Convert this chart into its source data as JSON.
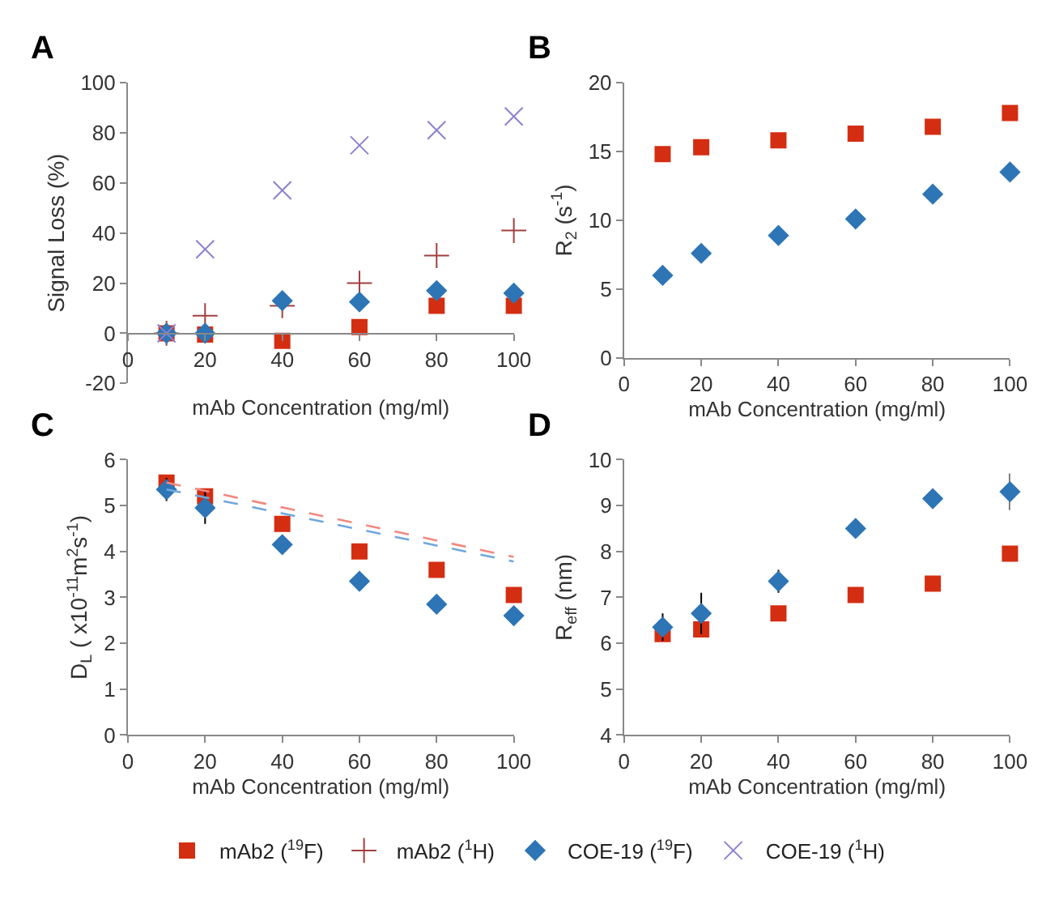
{
  "chart_data": [
    {
      "type": "scatter",
      "title": "A",
      "xlabel": "mAb Concentration (mg/ml)",
      "ylabel": "Signal Loss (%)",
      "x": [
        10,
        20,
        40,
        60,
        80,
        100
      ],
      "xlim": [
        0,
        100
      ],
      "xticks": [
        0,
        20,
        40,
        60,
        80,
        100
      ],
      "ylim": [
        -20,
        100
      ],
      "yticks": [
        -20,
        0,
        20,
        40,
        60,
        80,
        100
      ],
      "legend": "bottom",
      "series": [
        {
          "name": "mAb2 ($^{19}$F)",
          "color": "#d42e12",
          "marker": "square",
          "values": [
            0,
            -0.5,
            -3,
            2.5,
            11,
            11
          ]
        },
        {
          "name": "mAb2 ($^{1}$H)",
          "color": "#a0403f",
          "marker": "cross",
          "values": [
            0,
            7,
            11,
            20,
            31,
            41
          ]
        },
        {
          "name": "COE-19 ($^{19}$F)",
          "color": "#2e75b6",
          "marker": "diamond",
          "values": [
            0,
            0,
            13,
            12.5,
            17,
            16
          ]
        },
        {
          "name": "COE-19 ($^{1}$H)",
          "color": "#8a80d0",
          "marker": "x",
          "values": [
            0,
            33.5,
            57,
            75,
            81,
            86.5
          ]
        }
      ]
    },
    {
      "type": "scatter",
      "title": "B",
      "xlabel": "mAb Concentration (mg/ml)",
      "ylabel": "R$_{2}$ (s$^{-1}$)",
      "x": [
        10,
        20,
        40,
        60,
        80,
        100
      ],
      "xlim": [
        0,
        100
      ],
      "xticks": [
        0,
        20,
        40,
        60,
        80,
        100
      ],
      "ylim": [
        0,
        20
      ],
      "yticks": [
        0,
        5,
        10,
        15,
        20
      ],
      "series": [
        {
          "color": "#d42e12",
          "marker": "square",
          "values": [
            14.8,
            15.3,
            15.8,
            16.3,
            16.8,
            17.8
          ]
        },
        {
          "color": "#2e75b6",
          "marker": "diamond",
          "values": [
            6,
            7.6,
            8.9,
            10.1,
            11.9,
            13.5
          ]
        }
      ]
    },
    {
      "type": "scatter",
      "title": "C",
      "xlabel": "mAb Concentration (mg/ml)",
      "ylabel": "D$_{L}$ ( x10$^{-11}$m$^{2}$s$^{-1}$)",
      "x": [
        10,
        20,
        40,
        60,
        80,
        100
      ],
      "xlim": [
        0,
        100
      ],
      "xticks": [
        0,
        20,
        40,
        60,
        80,
        100
      ],
      "ylim": [
        0,
        6
      ],
      "yticks": [
        0,
        1,
        2,
        3,
        4,
        5,
        6
      ],
      "series": [
        {
          "color": "#d42e12",
          "marker": "square",
          "values": [
            5.5,
            5.2,
            4.6,
            4.0,
            3.6,
            3.05
          ]
        },
        {
          "color": "#2e75b6",
          "marker": "diamond",
          "values": [
            5.35,
            4.95,
            4.15,
            3.35,
            2.85,
            2.6
          ],
          "errors": [
            0.25,
            0.35,
            null,
            null,
            null,
            null
          ]
        },
        {
          "type": "line",
          "color": "#f08a80",
          "line_style": "dashed",
          "values": [
            5.5,
            5.32,
            4.96,
            4.6,
            4.24,
            3.88
          ]
        },
        {
          "type": "line",
          "color": "#6fa8dc",
          "line_style": "dashed",
          "values": [
            5.35,
            5.18,
            4.83,
            4.48,
            4.13,
            3.78
          ]
        }
      ]
    },
    {
      "type": "scatter",
      "title": "D",
      "xlabel": "mAb Concentration (mg/ml)",
      "ylabel": "R$_{eff}$ (nm)",
      "x": [
        10,
        20,
        40,
        60,
        80,
        100
      ],
      "xlim": [
        0,
        100
      ],
      "xticks": [
        0,
        20,
        40,
        60,
        80,
        100
      ],
      "ylim": [
        4,
        10
      ],
      "yticks": [
        4,
        5,
        6,
        7,
        8,
        9,
        10
      ],
      "series": [
        {
          "color": "#d42e12",
          "marker": "square",
          "values": [
            6.2,
            6.3,
            6.65,
            7.05,
            7.3,
            7.95
          ]
        },
        {
          "color": "#2e75b6",
          "marker": "diamond",
          "values": [
            6.35,
            6.65,
            7.35,
            8.5,
            9.15,
            9.3
          ],
          "errors": [
            0.3,
            0.45,
            0.25,
            null,
            null,
            0.4
          ]
        }
      ]
    }
  ]
}
